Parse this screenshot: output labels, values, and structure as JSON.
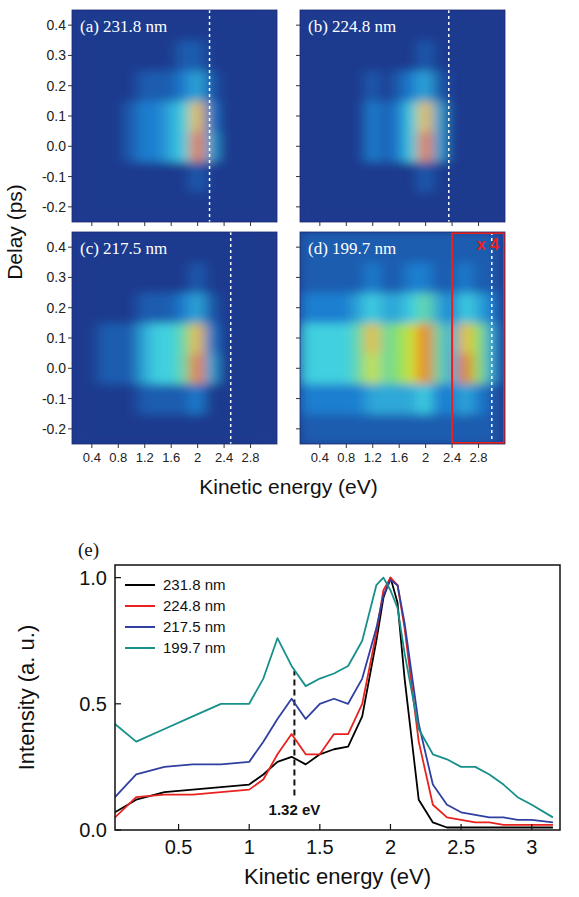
{
  "chart_data": [
    {
      "type": "heatmap",
      "title": "(a) 231.8 nm",
      "x": [
        0.2,
        0.4,
        0.6,
        0.8,
        1.0,
        1.2,
        1.4,
        1.6,
        1.8,
        2.0,
        2.2,
        2.4,
        2.6,
        2.8,
        3.0
      ],
      "y": [
        -0.2,
        -0.1,
        0,
        0.1,
        0.2,
        0.3,
        0.4
      ],
      "cells": [
        [
          0,
          0,
          0,
          0,
          0,
          0,
          0,
          0,
          0,
          0,
          0,
          0,
          0,
          0,
          0
        ],
        [
          0,
          0,
          0,
          0,
          0,
          0,
          0,
          0,
          0,
          1,
          0,
          0,
          0,
          0,
          0
        ],
        [
          0,
          0,
          0,
          0,
          1,
          2,
          2,
          3,
          4,
          9,
          3,
          0,
          0,
          0,
          0
        ],
        [
          0,
          0,
          0,
          0,
          1,
          2,
          2,
          3,
          4,
          8,
          2,
          0,
          0,
          0,
          0
        ],
        [
          0,
          0,
          0,
          0,
          0,
          1,
          1,
          1,
          2,
          3,
          1,
          0,
          0,
          0,
          0
        ],
        [
          0,
          0,
          0,
          0,
          0,
          0,
          0,
          0,
          1,
          1,
          0,
          0,
          0,
          0,
          0
        ],
        [
          0,
          0,
          0,
          0,
          0,
          0,
          0,
          0,
          0,
          0,
          0,
          0,
          0,
          0,
          0
        ]
      ],
      "zlim": [
        0,
        10
      ],
      "xlim": [
        0.1,
        3.2
      ],
      "ylim": [
        -0.25,
        0.45
      ],
      "xticks": [
        0.4,
        0.8,
        1.2,
        1.6,
        2.0,
        2.4,
        2.8
      ],
      "yticks": [
        -0.2,
        -0.1,
        {
          "value": 0,
          "label": "0.0"
        },
        0.1,
        0.2,
        0.3,
        0.4
      ],
      "tick_labels": "y",
      "cutoff": 2.18
    },
    {
      "type": "heatmap",
      "title": "(b) 224.8 nm",
      "x": [
        0.2,
        0.4,
        0.6,
        0.8,
        1.0,
        1.2,
        1.4,
        1.6,
        1.8,
        2.0,
        2.2,
        2.4,
        2.6,
        2.8,
        3.0
      ],
      "y": [
        -0.2,
        -0.1,
        0,
        0.1,
        0.2,
        0.3,
        0.4
      ],
      "cells": [
        [
          0,
          0,
          0,
          0,
          0,
          0,
          0,
          0,
          0,
          0,
          0,
          0,
          0,
          0,
          0
        ],
        [
          0,
          0,
          0,
          0,
          0,
          0,
          0,
          0,
          0,
          1,
          0,
          0,
          0,
          0,
          0
        ],
        [
          0,
          0,
          0,
          0,
          0,
          2,
          1,
          2,
          4,
          9,
          3,
          0,
          0,
          0,
          0
        ],
        [
          0,
          0,
          0,
          0,
          0,
          2,
          1,
          2,
          4,
          8,
          3,
          0,
          0,
          0,
          0
        ],
        [
          0,
          0,
          0,
          0,
          0,
          1,
          0,
          1,
          2,
          3,
          1,
          0,
          0,
          0,
          0
        ],
        [
          0,
          0,
          0,
          0,
          0,
          0,
          0,
          0,
          0,
          1,
          0,
          0,
          0,
          0,
          0
        ],
        [
          0,
          0,
          0,
          0,
          0,
          0,
          0,
          0,
          0,
          0,
          0,
          0,
          0,
          0,
          0
        ]
      ],
      "zlim": [
        0,
        10
      ],
      "xlim": [
        0.1,
        3.2
      ],
      "ylim": [
        -0.25,
        0.45
      ],
      "xticks": [
        0.4,
        0.8,
        1.2,
        1.6,
        2.0,
        2.4,
        2.8
      ],
      "yticks": [
        -0.2,
        -0.1,
        {
          "value": 0,
          "label": "0.0"
        },
        0.1,
        0.2,
        0.3,
        0.4
      ],
      "tick_labels": false,
      "cutoff": 2.35
    },
    {
      "type": "heatmap",
      "title": "(c) 217.5 nm",
      "x": [
        0.2,
        0.4,
        0.6,
        0.8,
        1.0,
        1.2,
        1.4,
        1.6,
        1.8,
        2.0,
        2.2,
        2.4,
        2.6,
        2.8,
        3.0
      ],
      "y": [
        -0.2,
        -0.1,
        0,
        0.1,
        0.2,
        0.3,
        0.4
      ],
      "cells": [
        [
          0,
          0,
          0,
          0,
          0,
          0,
          0,
          0,
          0,
          0,
          0,
          0,
          0,
          0,
          0
        ],
        [
          0,
          0,
          0,
          0,
          0,
          1,
          1,
          1,
          1,
          2,
          0,
          0,
          0,
          0,
          0
        ],
        [
          0,
          0,
          1,
          1,
          1,
          3,
          4,
          4,
          5,
          9,
          3,
          0,
          0,
          0,
          0
        ],
        [
          0,
          0,
          1,
          1,
          1,
          3,
          4,
          4,
          5,
          8,
          2,
          0,
          0,
          0,
          0
        ],
        [
          0,
          0,
          0,
          0,
          0,
          1,
          1,
          1,
          2,
          3,
          1,
          0,
          0,
          0,
          0
        ],
        [
          0,
          0,
          0,
          0,
          0,
          0,
          0,
          0,
          0,
          1,
          0,
          0,
          0,
          0,
          0
        ],
        [
          0,
          0,
          0,
          0,
          0,
          0,
          0,
          0,
          0,
          0,
          0,
          0,
          0,
          0,
          0
        ]
      ],
      "zlim": [
        0,
        10
      ],
      "xlim": [
        0.1,
        3.2
      ],
      "ylim": [
        -0.25,
        0.45
      ],
      "xticks": [
        0.4,
        0.8,
        1.2,
        1.6,
        2.0,
        2.4,
        2.8
      ],
      "yticks": [
        -0.2,
        -0.1,
        {
          "value": 0,
          "label": "0.0"
        },
        0.1,
        0.2,
        0.3,
        0.4
      ],
      "tick_labels": true,
      "cutoff": 2.5
    },
    {
      "type": "heatmap",
      "title": "(d) 199.7 nm",
      "x": [
        0.2,
        0.4,
        0.6,
        0.8,
        1.0,
        1.2,
        1.4,
        1.6,
        1.8,
        2.0,
        2.2,
        2.4,
        2.6,
        2.8,
        3.0
      ],
      "y": [
        -0.2,
        -0.1,
        0,
        0.1,
        0.2,
        0.3,
        0.4
      ],
      "cells": [
        [
          1,
          1,
          1,
          1,
          1,
          1,
          1,
          1,
          1,
          1,
          1,
          1,
          1,
          1,
          1
        ],
        [
          2,
          2,
          2,
          2,
          2,
          3,
          3,
          3,
          3,
          4,
          2,
          2,
          3,
          2,
          1
        ],
        [
          4,
          4,
          4,
          4,
          5,
          7,
          5,
          6,
          7,
          9,
          5,
          3,
          9,
          6,
          3
        ],
        [
          4,
          4,
          4,
          4,
          5,
          8,
          5,
          6,
          7,
          9,
          5,
          3,
          8,
          6,
          3
        ],
        [
          2,
          2,
          2,
          2,
          3,
          4,
          3,
          3,
          4,
          5,
          3,
          2,
          4,
          3,
          2
        ],
        [
          1,
          1,
          1,
          1,
          1,
          2,
          1,
          1,
          2,
          2,
          1,
          1,
          2,
          1,
          1
        ],
        [
          1,
          1,
          1,
          1,
          1,
          1,
          1,
          1,
          1,
          1,
          1,
          1,
          1,
          1,
          1
        ]
      ],
      "zlim": [
        0,
        10
      ],
      "xlim": [
        0.1,
        3.2
      ],
      "ylim": [
        -0.25,
        0.45
      ],
      "xticks": [
        0.4,
        0.8,
        1.2,
        1.6,
        2.0,
        2.4,
        2.8
      ],
      "yticks": [
        -0.2,
        -0.1,
        {
          "value": 0,
          "label": "0.0"
        },
        0.1,
        0.2,
        0.3,
        0.4
      ],
      "tick_labels": "x",
      "cutoff": 3.0,
      "inset": {
        "from": 2.4,
        "label": "x 4"
      }
    },
    {
      "type": "line",
      "title": "(e)",
      "x_label": "Kinetic energy (eV)",
      "y_label": "Intensity (a. u.)",
      "x": [
        0.05,
        0.2,
        0.4,
        0.6,
        0.8,
        1.0,
        1.1,
        1.2,
        1.3,
        1.4,
        1.5,
        1.6,
        1.7,
        1.8,
        1.9,
        1.95,
        2.0,
        2.05,
        2.1,
        2.2,
        2.3,
        2.4,
        2.5,
        2.6,
        2.7,
        2.8,
        2.9,
        3.0,
        3.15
      ],
      "series": [
        {
          "name": "231.8 nm",
          "color": "#000000",
          "values": [
            0.07,
            0.12,
            0.15,
            0.16,
            0.17,
            0.18,
            0.22,
            0.27,
            0.29,
            0.26,
            0.3,
            0.32,
            0.33,
            0.45,
            0.75,
            0.92,
            1.0,
            0.9,
            0.6,
            0.12,
            0.03,
            0.01,
            0.01,
            0.01,
            0.01,
            0.01,
            0.01,
            0.01,
            0.01
          ]
        },
        {
          "name": "224.8 nm",
          "color": "#e8221e",
          "values": [
            0.05,
            0.13,
            0.14,
            0.14,
            0.15,
            0.16,
            0.2,
            0.3,
            0.38,
            0.3,
            0.3,
            0.38,
            0.38,
            0.5,
            0.78,
            0.95,
            1.0,
            0.97,
            0.8,
            0.35,
            0.1,
            0.05,
            0.04,
            0.03,
            0.03,
            0.02,
            0.02,
            0.02,
            0.02
          ]
        },
        {
          "name": "217.5 nm",
          "color": "#3040a0",
          "values": [
            0.13,
            0.22,
            0.25,
            0.26,
            0.26,
            0.27,
            0.35,
            0.44,
            0.52,
            0.44,
            0.5,
            0.52,
            0.5,
            0.6,
            0.8,
            0.93,
            0.99,
            0.97,
            0.82,
            0.42,
            0.18,
            0.1,
            0.07,
            0.06,
            0.05,
            0.05,
            0.04,
            0.04,
            0.03
          ]
        },
        {
          "name": "199.7 nm",
          "color": "#17908a",
          "values": [
            0.42,
            0.35,
            0.4,
            0.45,
            0.5,
            0.5,
            0.6,
            0.76,
            0.65,
            0.57,
            0.6,
            0.62,
            0.65,
            0.75,
            0.97,
            1.0,
            0.95,
            0.88,
            0.7,
            0.4,
            0.3,
            0.28,
            0.25,
            0.25,
            0.22,
            0.18,
            0.13,
            0.1,
            0.05
          ]
        }
      ],
      "xlim": [
        0.05,
        3.2
      ],
      "ylim": [
        0,
        1.05
      ],
      "xticks": [
        0.5,
        1.0,
        1.5,
        2.0,
        2.5,
        3.0
      ],
      "yticks": [
        {
          "value": 0,
          "label": "0.0"
        },
        0.5,
        {
          "value": 1,
          "label": "1.0"
        }
      ],
      "legend": "upper left",
      "annotation": {
        "x": 1.32,
        "label": "1.32 eV"
      }
    }
  ],
  "figure": {
    "x_label": "Kinetic energy (eV)",
    "y_label": "Delay (ps)"
  }
}
